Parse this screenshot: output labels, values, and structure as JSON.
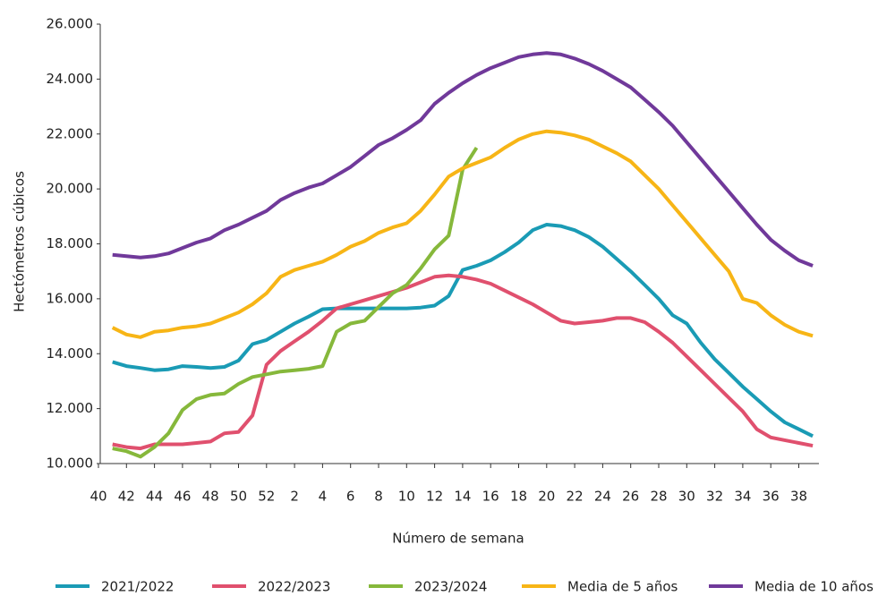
{
  "chart_data": {
    "type": "line",
    "y_label": "Hectómetros cúbicos",
    "x_label": "Número de semana",
    "categories": [
      "40",
      null,
      "42",
      null,
      "44",
      null,
      "46",
      null,
      "48",
      null,
      "50",
      null,
      "52",
      null,
      "2",
      null,
      "4",
      null,
      "6",
      null,
      "8",
      null,
      "10",
      null,
      "12",
      null,
      "14",
      null,
      "16",
      null,
      "18",
      null,
      "20",
      null,
      "22",
      null,
      "24",
      null,
      "26",
      null,
      "28",
      null,
      "30",
      null,
      "32",
      null,
      "34",
      null,
      "36",
      null,
      "38",
      null
    ],
    "ylim": [
      10000,
      26000
    ],
    "yticks": [
      {
        "value": 10000,
        "label": "10.000"
      },
      {
        "value": 12000,
        "label": "12.000"
      },
      {
        "value": 14000,
        "label": "14.000"
      },
      {
        "value": 16000,
        "label": "16.000"
      },
      {
        "value": 18000,
        "label": "18.000"
      },
      {
        "value": 20000,
        "label": "20.000"
      },
      {
        "value": 22000,
        "label": "22.000"
      },
      {
        "value": 24000,
        "label": "24.000"
      },
      {
        "value": 26000,
        "label": "26.000"
      }
    ],
    "grid": false,
    "legend": "bottom",
    "series": [
      {
        "name": "2021/2022",
        "color": "#1a9bb5",
        "values": [
          null,
          13700,
          13550,
          13480,
          13400,
          13430,
          13550,
          13520,
          13480,
          13520,
          13750,
          14350,
          14500,
          14800,
          15100,
          15350,
          15620,
          15650,
          15650,
          15650,
          15650,
          15650,
          15650,
          15680,
          15750,
          16100,
          17050,
          17200,
          17400,
          17700,
          18050,
          18500,
          18700,
          18650,
          18500,
          18250,
          17900,
          17450,
          17000,
          16500,
          16000,
          15400,
          15100,
          14400,
          13800,
          13300,
          12800,
          12350,
          11900,
          11500,
          11250,
          11000
        ]
      },
      {
        "name": "2022/2023",
        "color": "#e0506e",
        "values": [
          null,
          10700,
          10600,
          10550,
          10700,
          10700,
          10700,
          10750,
          10800,
          11100,
          11150,
          11750,
          13600,
          14100,
          14450,
          14800,
          15200,
          15650,
          15800,
          15950,
          16100,
          16250,
          16400,
          16600,
          16800,
          16850,
          16800,
          16700,
          16550,
          16300,
          16050,
          15800,
          15500,
          15200,
          15100,
          15150,
          15200,
          15300,
          15300,
          15150,
          14800,
          14400,
          13900,
          13400,
          12900,
          12400,
          11900,
          11250,
          10950,
          10850,
          10750,
          10650
        ]
      },
      {
        "name": "2023/2024",
        "color": "#86b83b",
        "values": [
          null,
          10550,
          10450,
          10250,
          10600,
          11100,
          11950,
          12350,
          12500,
          12550,
          12900,
          13150,
          13250,
          13350,
          13400,
          13450,
          13550,
          14800,
          15100,
          15200,
          15700,
          16200,
          16500,
          17100,
          17800,
          18300,
          20700,
          21500,
          null,
          null,
          null,
          null,
          null,
          null,
          null,
          null,
          null,
          null,
          null,
          null,
          null,
          null,
          null,
          null,
          null,
          null,
          null,
          null,
          null,
          null,
          null,
          null
        ]
      },
      {
        "name": "Media de 5 años",
        "color": "#f7b516",
        "values": [
          null,
          14950,
          14700,
          14600,
          14800,
          14850,
          14950,
          15000,
          15100,
          15300,
          15500,
          15800,
          16200,
          16800,
          17050,
          17200,
          17350,
          17600,
          17900,
          18100,
          18400,
          18600,
          18750,
          19200,
          19800,
          20450,
          20750,
          20950,
          21150,
          21500,
          21800,
          22000,
          22100,
          22050,
          21950,
          21800,
          21550,
          21300,
          21000,
          20500,
          20000,
          19400,
          18800,
          18200,
          17600,
          17000,
          16000,
          15850,
          15400,
          15050,
          14800,
          14650
        ]
      },
      {
        "name": "Media de 10 años",
        "color": "#70399a",
        "values": [
          null,
          17600,
          17550,
          17500,
          17550,
          17650,
          17850,
          18050,
          18200,
          18500,
          18700,
          18950,
          19200,
          19600,
          19850,
          20050,
          20200,
          20500,
          20800,
          21200,
          21600,
          21850,
          22150,
          22500,
          23100,
          23500,
          23850,
          24150,
          24400,
          24600,
          24800,
          24900,
          24950,
          24900,
          24750,
          24550,
          24300,
          24000,
          23700,
          23250,
          22800,
          22300,
          21700,
          21100,
          20500,
          19900,
          19300,
          18700,
          18150,
          17750,
          17400,
          17200
        ]
      }
    ]
  }
}
